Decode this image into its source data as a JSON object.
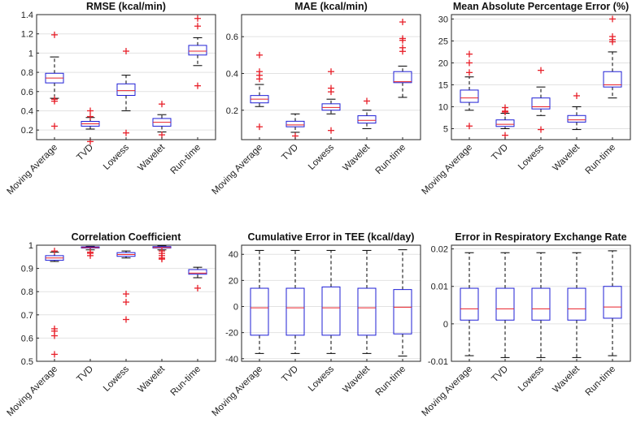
{
  "chart_data": [
    {
      "type": "box",
      "title": "RMSE (kcal/min)",
      "categories": [
        "Moving Average",
        "TVD",
        "Lowess",
        "Wavelet",
        "Run-time"
      ],
      "ylim": [
        0.1,
        1.4
      ],
      "yticks": [
        0.2,
        0.4,
        0.6,
        0.8,
        1,
        1.2,
        1.4
      ],
      "grid": true,
      "boxes": [
        {
          "whislo": 0.53,
          "q1": 0.69,
          "med": 0.74,
          "q3": 0.79,
          "whishi": 0.96,
          "fliers": [
            1.19,
            0.52,
            0.5,
            0.24
          ]
        },
        {
          "whislo": 0.21,
          "q1": 0.24,
          "med": 0.265,
          "q3": 0.29,
          "whishi": 0.33,
          "fliers": [
            0.4,
            0.34,
            0.08
          ]
        },
        {
          "whislo": 0.4,
          "q1": 0.56,
          "med": 0.61,
          "q3": 0.68,
          "whishi": 0.77,
          "fliers": [
            1.02,
            0.17
          ]
        },
        {
          "whislo": 0.18,
          "q1": 0.24,
          "med": 0.28,
          "q3": 0.32,
          "whishi": 0.36,
          "fliers": [
            0.47,
            0.15
          ]
        },
        {
          "whislo": 0.87,
          "q1": 0.98,
          "med": 1.02,
          "q3": 1.08,
          "whishi": 1.16,
          "fliers": [
            1.36,
            1.28,
            0.66
          ]
        }
      ]
    },
    {
      "type": "box",
      "title": "MAE (kcal/min)",
      "categories": [
        "Moving Average",
        "TVD",
        "Lowess",
        "Wavelet",
        "Run-time"
      ],
      "ylim": [
        0.04,
        0.72
      ],
      "yticks": [
        0.2,
        0.4,
        0.6
      ],
      "grid": true,
      "boxes": [
        {
          "whislo": 0.22,
          "q1": 0.24,
          "med": 0.26,
          "q3": 0.28,
          "whishi": 0.34,
          "fliers": [
            0.5,
            0.41,
            0.39,
            0.37,
            0.11
          ]
        },
        {
          "whislo": 0.08,
          "q1": 0.11,
          "med": 0.12,
          "q3": 0.14,
          "whishi": 0.18,
          "fliers": [
            0.06
          ]
        },
        {
          "whislo": 0.18,
          "q1": 0.2,
          "med": 0.215,
          "q3": 0.235,
          "whishi": 0.26,
          "fliers": [
            0.41,
            0.32,
            0.3,
            0.09
          ]
        },
        {
          "whislo": 0.1,
          "q1": 0.13,
          "med": 0.145,
          "q3": 0.17,
          "whishi": 0.2,
          "fliers": [
            0.25
          ]
        },
        {
          "whislo": 0.27,
          "q1": 0.35,
          "med": 0.355,
          "q3": 0.41,
          "whishi": 0.44,
          "fliers": [
            0.68,
            0.59,
            0.58,
            0.54,
            0.52
          ]
        }
      ]
    },
    {
      "type": "box",
      "title": "Mean Absolute Percentage Error (%)",
      "categories": [
        "Moving Average",
        "TVD",
        "Lowess",
        "Wavelet",
        "Run-time"
      ],
      "ylim": [
        2.5,
        31
      ],
      "yticks": [
        5,
        10,
        15,
        20,
        25,
        30
      ],
      "grid": true,
      "boxes": [
        {
          "whislo": 9.2,
          "q1": 11.0,
          "med": 12.0,
          "q3": 13.8,
          "whishi": 16.8,
          "fliers": [
            22.0,
            20.0,
            17.8,
            5.6
          ]
        },
        {
          "whislo": 5.0,
          "q1": 5.5,
          "med": 6.0,
          "q3": 7.0,
          "whishi": 8.5,
          "fliers": [
            9.8,
            9.0,
            8.8,
            3.5
          ]
        },
        {
          "whislo": 8.0,
          "q1": 9.5,
          "med": 10.0,
          "q3": 12.0,
          "whishi": 14.5,
          "fliers": [
            18.3,
            4.8
          ]
        },
        {
          "whislo": 4.8,
          "q1": 6.5,
          "med": 7.0,
          "q3": 8.0,
          "whishi": 10.0,
          "fliers": [
            12.5
          ]
        },
        {
          "whislo": 12.0,
          "q1": 14.5,
          "med": 15.0,
          "q3": 18.0,
          "whishi": 22.5,
          "fliers": [
            30.0,
            26.0,
            25.3,
            24.8
          ]
        }
      ]
    },
    {
      "type": "box",
      "title": "Correlation Coefficient",
      "categories": [
        "Moving Average",
        "TVD",
        "Lowess",
        "Wavelet",
        "Run-time"
      ],
      "ylim": [
        0.5,
        1.0
      ],
      "yticks": [
        0.5,
        0.6,
        0.7,
        0.8,
        0.9,
        1
      ],
      "grid": true,
      "boxes": [
        {
          "whislo": 0.93,
          "q1": 0.935,
          "med": 0.945,
          "q3": 0.955,
          "whishi": 0.97,
          "fliers": [
            0.975,
            0.64,
            0.63,
            0.61,
            0.53
          ]
        },
        {
          "whislo": 0.98,
          "q1": 0.988,
          "med": 0.99,
          "q3": 0.993,
          "whishi": 0.995,
          "fliers": [
            0.97,
            0.965,
            0.955
          ]
        },
        {
          "whislo": 0.945,
          "q1": 0.952,
          "med": 0.96,
          "q3": 0.968,
          "whishi": 0.975,
          "fliers": [
            0.79,
            0.755,
            0.68
          ]
        },
        {
          "whislo": 0.98,
          "q1": 0.988,
          "med": 0.99,
          "q3": 0.994,
          "whishi": 0.997,
          "fliers": [
            0.975,
            0.965,
            0.955,
            0.945,
            0.94
          ]
        },
        {
          "whislo": 0.86,
          "q1": 0.875,
          "med": 0.88,
          "q3": 0.895,
          "whishi": 0.905,
          "fliers": [
            0.815
          ]
        }
      ]
    },
    {
      "type": "box",
      "title": "Cumulative Error in TEE (kcal/day)",
      "categories": [
        "Moving Average",
        "TVD",
        "Lowess",
        "Wavelet",
        "Run-time"
      ],
      "ylim": [
        -42,
        47
      ],
      "yticks": [
        -40,
        -20,
        0,
        20,
        40
      ],
      "grid": true,
      "boxes": [
        {
          "whislo": -36,
          "q1": -22,
          "med": -1,
          "q3": 14,
          "whishi": 43,
          "fliers": []
        },
        {
          "whislo": -36,
          "q1": -22,
          "med": -1,
          "q3": 14,
          "whishi": 43,
          "fliers": []
        },
        {
          "whislo": -36,
          "q1": -22,
          "med": -1,
          "q3": 15,
          "whishi": 43,
          "fliers": []
        },
        {
          "whislo": -36,
          "q1": -22,
          "med": -1,
          "q3": 14,
          "whishi": 43,
          "fliers": []
        },
        {
          "whislo": -38,
          "q1": -21,
          "med": -0.5,
          "q3": 13,
          "whishi": 43.5,
          "fliers": []
        }
      ]
    },
    {
      "type": "box",
      "title": "Error in Respiratory Exchange Rate",
      "categories": [
        "Moving Average",
        "TVD",
        "Lowess",
        "Wavelet",
        "Run-time"
      ],
      "ylim": [
        -0.01,
        0.021
      ],
      "yticks": [
        -0.01,
        0,
        0.01,
        0.02
      ],
      "grid": true,
      "boxes": [
        {
          "whislo": -0.0085,
          "q1": 0.001,
          "med": 0.004,
          "q3": 0.0095,
          "whishi": 0.019,
          "fliers": []
        },
        {
          "whislo": -0.009,
          "q1": 0.001,
          "med": 0.004,
          "q3": 0.0095,
          "whishi": 0.019,
          "fliers": []
        },
        {
          "whislo": -0.009,
          "q1": 0.001,
          "med": 0.004,
          "q3": 0.0095,
          "whishi": 0.019,
          "fliers": []
        },
        {
          "whislo": -0.009,
          "q1": 0.001,
          "med": 0.004,
          "q3": 0.0095,
          "whishi": 0.019,
          "fliers": []
        },
        {
          "whislo": -0.0085,
          "q1": 0.0015,
          "med": 0.0045,
          "q3": 0.01,
          "whishi": 0.0195,
          "fliers": []
        }
      ]
    }
  ]
}
